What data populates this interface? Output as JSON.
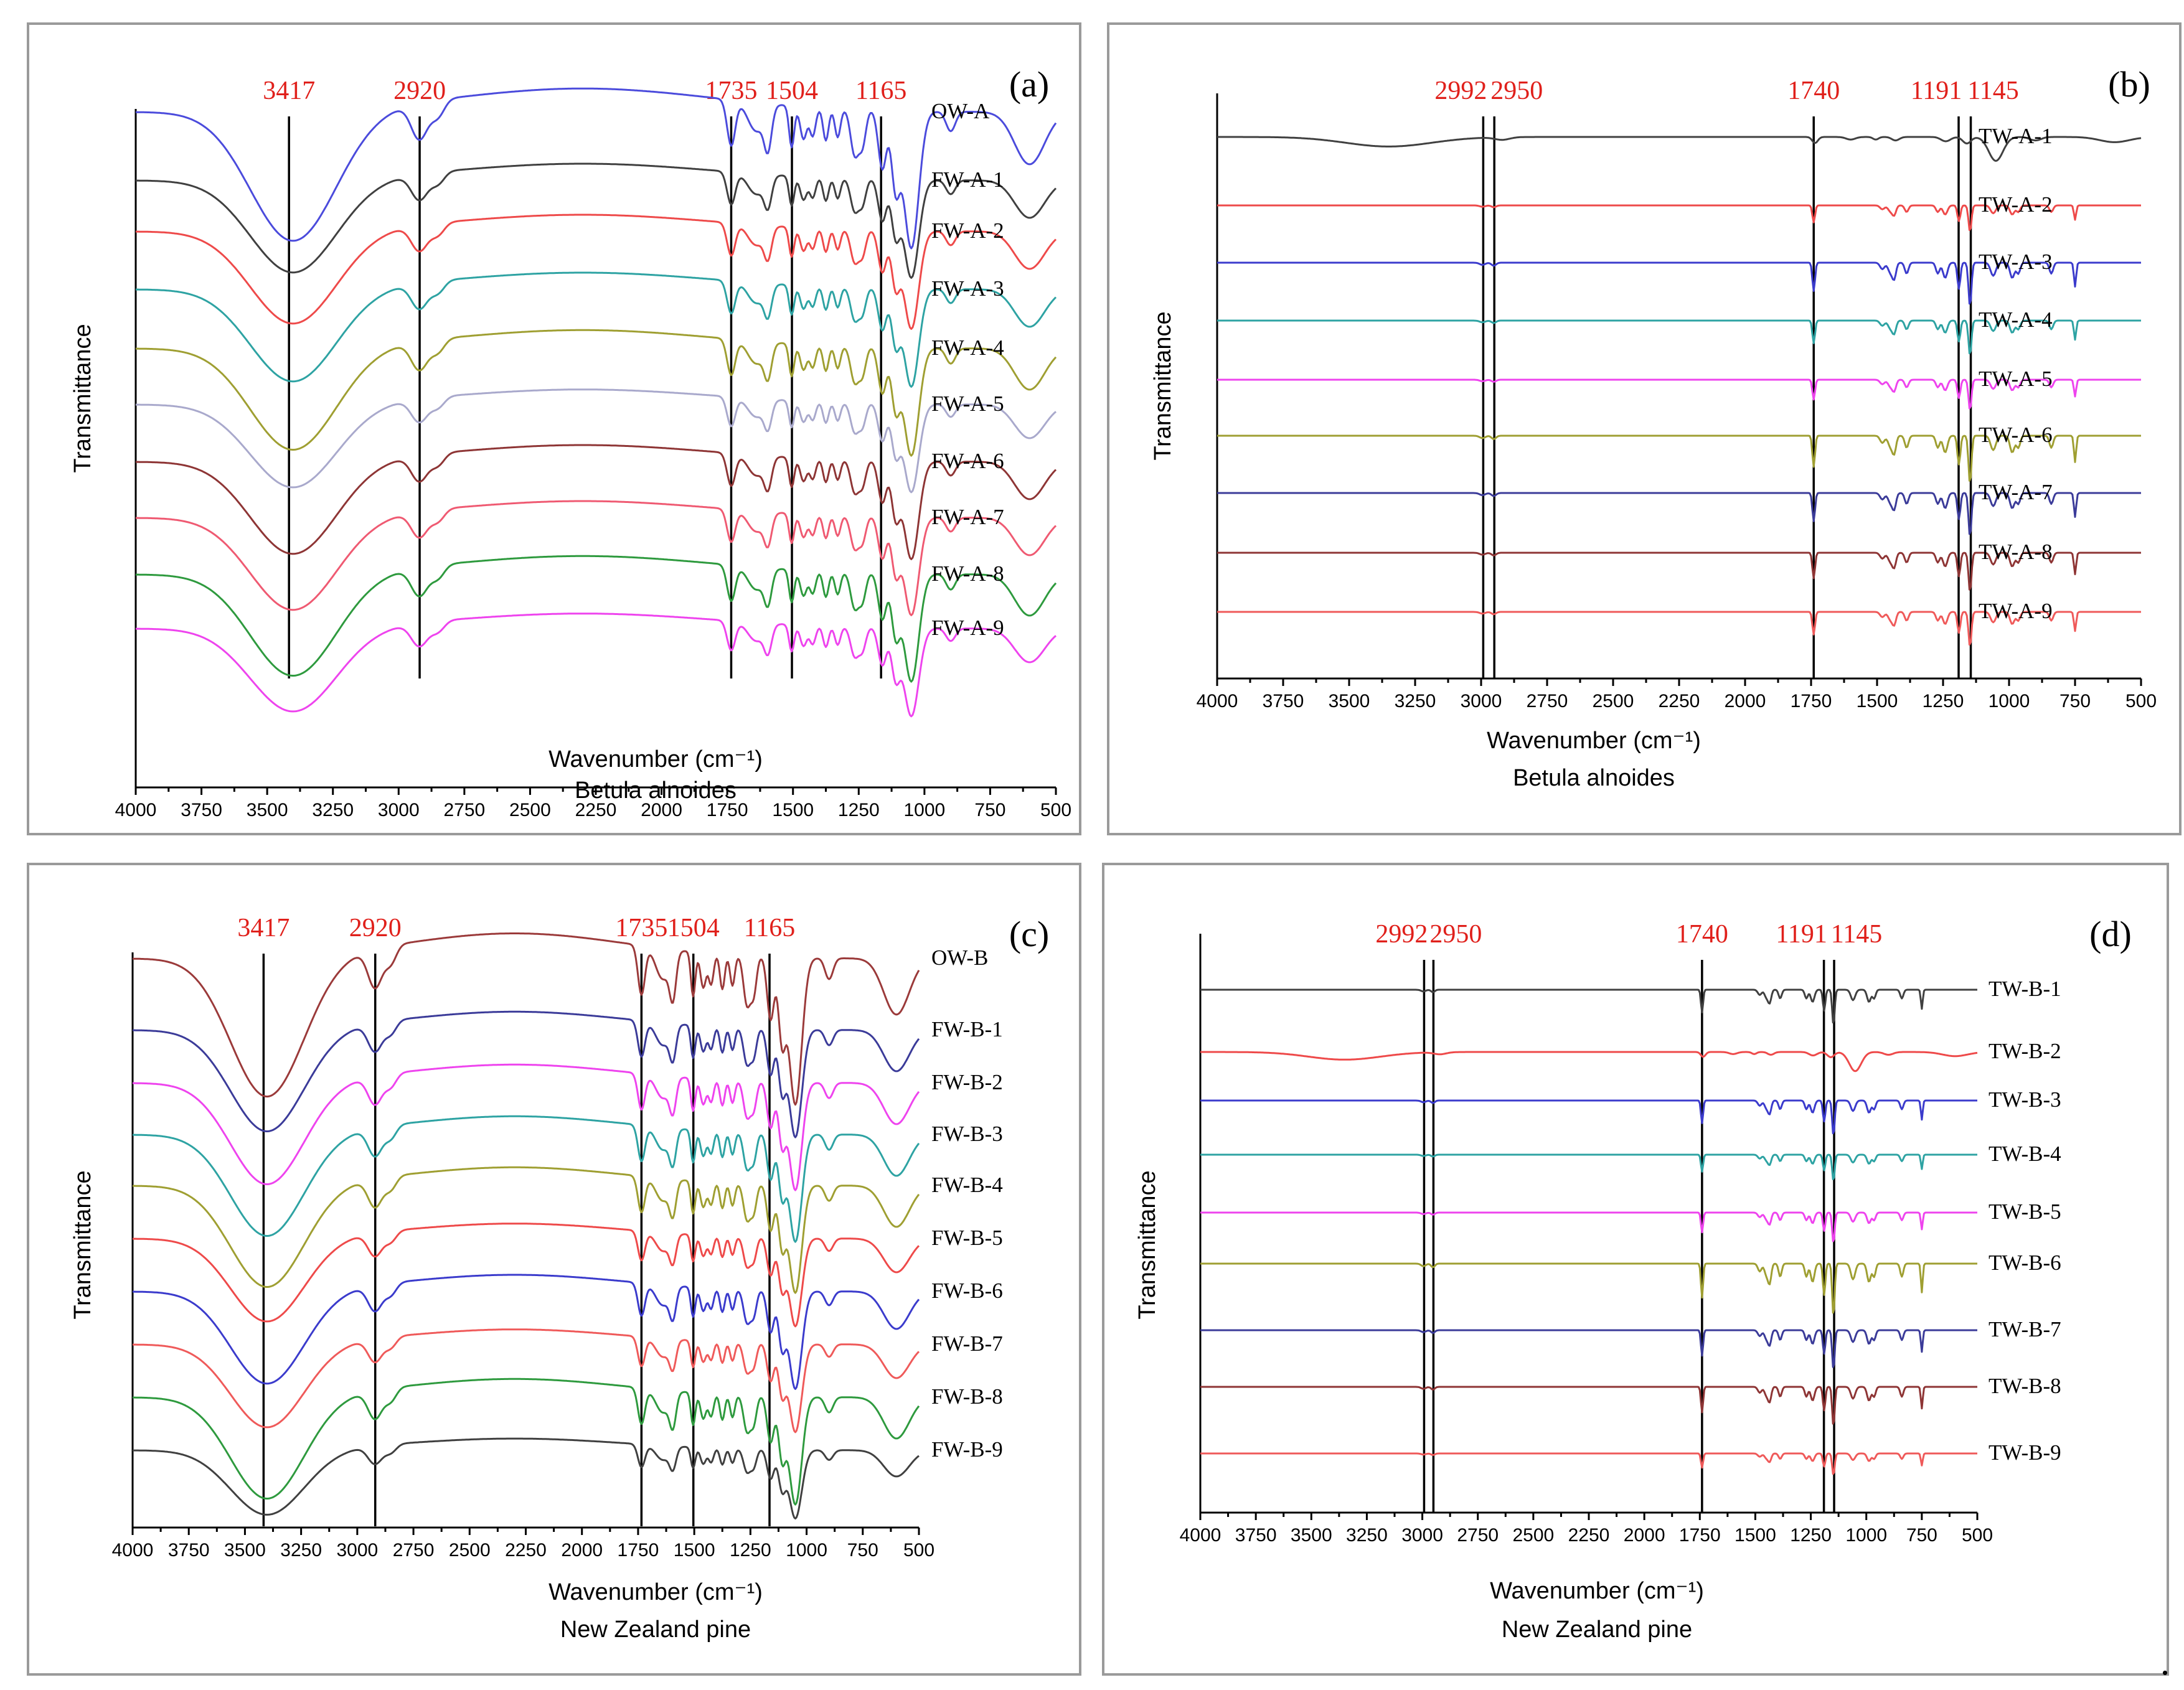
{
  "figure_trailing_text": ".",
  "chart_data": [
    {
      "id": "a",
      "type": "line",
      "panel_label": "(a)",
      "title": "",
      "xlabel": "Wavenumber (cm⁻¹)",
      "subtitle": "Betula alnoides",
      "ylabel": "Transmittance",
      "xlim": [
        4000,
        500
      ],
      "x_reversed": true,
      "xticks": [
        4000,
        3750,
        3500,
        3250,
        3000,
        2750,
        2500,
        2250,
        2000,
        1750,
        1500,
        1250,
        1000,
        750,
        500
      ],
      "grid": false,
      "legend": "right-of-plot, series labels at line ends",
      "peak_markers": [
        3417,
        2920,
        1735,
        1504,
        1165
      ],
      "series": [
        {
          "name": "OW-A",
          "color": "#4b4bdc",
          "type": "FW",
          "scale": 1.4
        },
        {
          "name": "FW-A-1",
          "color": "#404040",
          "type": "FW",
          "scale": 1.0
        },
        {
          "name": "FW-A-2",
          "color": "#ee4a4a",
          "type": "FW",
          "scale": 1.0
        },
        {
          "name": "FW-A-3",
          "color": "#2ea3a3",
          "type": "FW",
          "scale": 1.0
        },
        {
          "name": "FW-A-4",
          "color": "#9f9f32",
          "type": "FW",
          "scale": 1.1
        },
        {
          "name": "FW-A-5",
          "color": "#a9a9cc",
          "type": "FW",
          "scale": 0.9
        },
        {
          "name": "FW-A-6",
          "color": "#8e3535",
          "type": "FW",
          "scale": 1.0
        },
        {
          "name": "FW-A-7",
          "color": "#ef5a72",
          "type": "FW",
          "scale": 1.0
        },
        {
          "name": "FW-A-8",
          "color": "#2e9a3e",
          "type": "FW",
          "scale": 1.1
        },
        {
          "name": "FW-A-9",
          "color": "#ee44ee",
          "type": "FW",
          "scale": 0.9
        }
      ]
    },
    {
      "id": "b",
      "type": "line",
      "panel_label": "(b)",
      "title": "",
      "xlabel": "Wavenumber (cm⁻¹)",
      "subtitle": "Betula alnoides",
      "ylabel": "Transmittance",
      "xlim": [
        4000,
        500
      ],
      "x_reversed": true,
      "xticks": [
        4000,
        3750,
        3500,
        3250,
        3000,
        2750,
        2500,
        2250,
        2000,
        1750,
        1500,
        1250,
        1000,
        750,
        500
      ],
      "grid": false,
      "legend": "right-of-plot, series labels at line ends",
      "peak_markers": [
        2992,
        2950,
        1740,
        1191,
        1145
      ],
      "series": [
        {
          "name": "TW-A-1",
          "color": "#404040",
          "type": "TW0",
          "scale": 1.0
        },
        {
          "name": "TW-A-2",
          "color": "#ee4a4a",
          "type": "TW",
          "scale": 0.6
        },
        {
          "name": "TW-A-3",
          "color": "#3b3bcc",
          "type": "TW",
          "scale": 1.0
        },
        {
          "name": "TW-A-4",
          "color": "#2ea3a3",
          "type": "TW",
          "scale": 0.8
        },
        {
          "name": "TW-A-5",
          "color": "#ee44ee",
          "type": "TW",
          "scale": 0.7
        },
        {
          "name": "TW-A-6",
          "color": "#9f9f32",
          "type": "TW",
          "scale": 1.1
        },
        {
          "name": "TW-A-7",
          "color": "#3b3b99",
          "type": "TW",
          "scale": 1.0
        },
        {
          "name": "TW-A-8",
          "color": "#8e3535",
          "type": "TW",
          "scale": 0.9
        },
        {
          "name": "TW-A-9",
          "color": "#ef5a5a",
          "type": "TW",
          "scale": 0.8
        }
      ]
    },
    {
      "id": "c",
      "type": "line",
      "panel_label": "(c)",
      "title": "",
      "xlabel": "Wavenumber (cm⁻¹)",
      "subtitle": "New Zealand pine",
      "ylabel": "Transmittance",
      "xlim": [
        4000,
        500
      ],
      "x_reversed": true,
      "xticks": [
        4000,
        3750,
        3500,
        3250,
        3000,
        2750,
        2500,
        2250,
        2000,
        1750,
        1500,
        1250,
        1000,
        750,
        500
      ],
      "grid": false,
      "legend": "right-of-plot, series labels at line ends",
      "peak_markers": [
        3417,
        2920,
        1735,
        1504,
        1165
      ],
      "series": [
        {
          "name": "OW-B",
          "color": "#9b3a3a",
          "type": "FW",
          "scale": 1.5
        },
        {
          "name": "FW-B-1",
          "color": "#3b3b99",
          "type": "FW",
          "scale": 1.1
        },
        {
          "name": "FW-B-2",
          "color": "#ee44ee",
          "type": "FW",
          "scale": 1.1
        },
        {
          "name": "FW-B-3",
          "color": "#2ea3a3",
          "type": "FW",
          "scale": 1.1
        },
        {
          "name": "FW-B-4",
          "color": "#9f9f32",
          "type": "FW",
          "scale": 1.1
        },
        {
          "name": "FW-B-5",
          "color": "#ee4a4a",
          "type": "FW",
          "scale": 0.9
        },
        {
          "name": "FW-B-6",
          "color": "#3b3bcc",
          "type": "FW",
          "scale": 1.0
        },
        {
          "name": "FW-B-7",
          "color": "#ef5a5a",
          "type": "FW",
          "scale": 0.9
        },
        {
          "name": "FW-B-8",
          "color": "#2e9a3e",
          "type": "FW",
          "scale": 1.1
        },
        {
          "name": "FW-B-9",
          "color": "#404040",
          "type": "FW",
          "scale": 0.7
        }
      ]
    },
    {
      "id": "d",
      "type": "line",
      "panel_label": "(d)",
      "title": "",
      "xlabel": "Wavenumber (cm⁻¹)",
      "subtitle": "New Zealand pine",
      "ylabel": "Transmittance",
      "xlim": [
        4000,
        500
      ],
      "x_reversed": true,
      "xticks": [
        4000,
        3750,
        3500,
        3250,
        3000,
        2750,
        2500,
        2250,
        2000,
        1750,
        1500,
        1250,
        1000,
        750,
        500
      ],
      "grid": false,
      "legend": "right-of-plot, series labels at line ends",
      "peak_markers": [
        2992,
        2950,
        1740,
        1191,
        1145
      ],
      "series": [
        {
          "name": "TW-B-1",
          "color": "#404040",
          "type": "TW",
          "scale": 0.8
        },
        {
          "name": "TW-B-2",
          "color": "#ee4a4a",
          "type": "TW0",
          "scale": 0.8
        },
        {
          "name": "TW-B-3",
          "color": "#3b3bcc",
          "type": "TW",
          "scale": 0.8
        },
        {
          "name": "TW-B-4",
          "color": "#2ea3a3",
          "type": "TW",
          "scale": 0.6
        },
        {
          "name": "TW-B-5",
          "color": "#ee44ee",
          "type": "TW",
          "scale": 0.7
        },
        {
          "name": "TW-B-6",
          "color": "#9f9f32",
          "type": "TW",
          "scale": 1.2
        },
        {
          "name": "TW-B-7",
          "color": "#3b3b99",
          "type": "TW",
          "scale": 0.9
        },
        {
          "name": "TW-B-8",
          "color": "#8e3535",
          "type": "TW",
          "scale": 0.9
        },
        {
          "name": "TW-B-9",
          "color": "#ef5a5a",
          "type": "TW",
          "scale": 0.5
        }
      ]
    }
  ]
}
